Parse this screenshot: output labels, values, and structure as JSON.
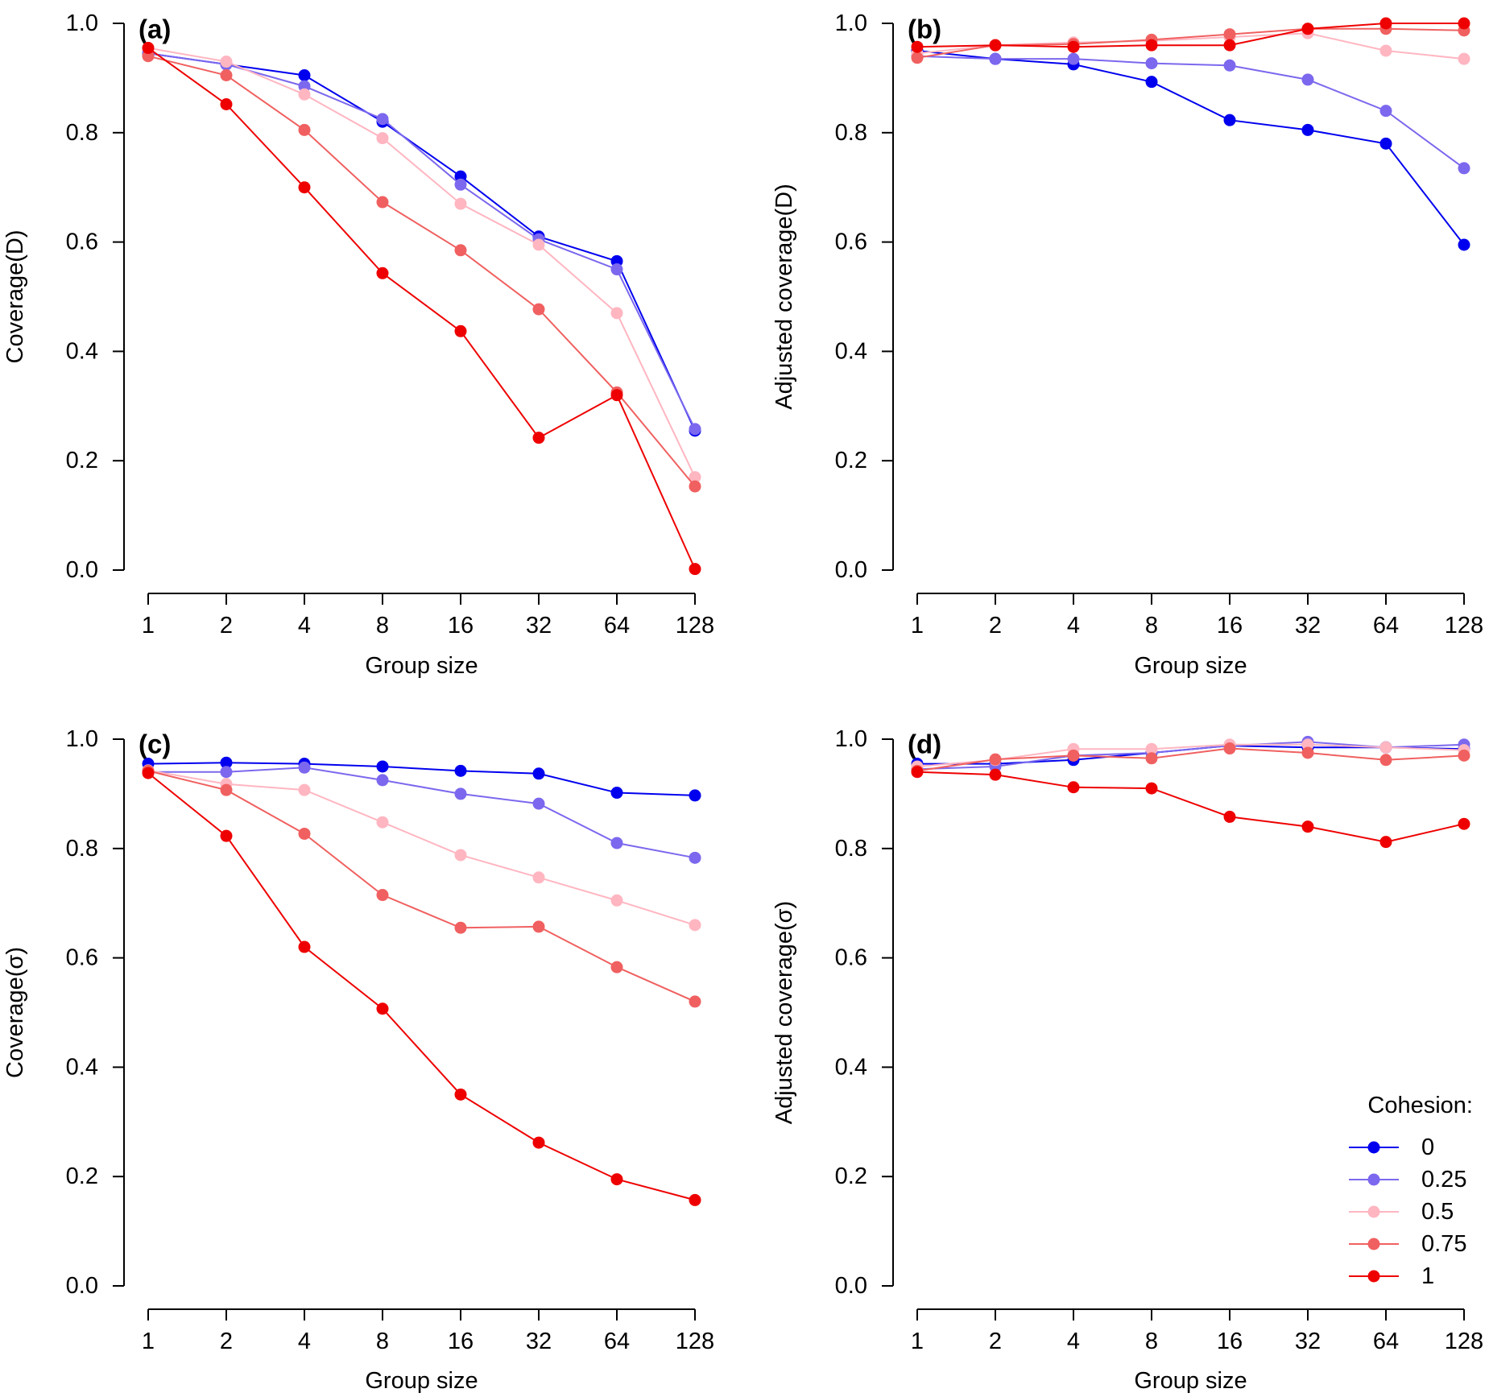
{
  "chart_data": [
    {
      "type": "line",
      "panel_label": "(a)",
      "x": [
        1,
        2,
        4,
        8,
        16,
        32,
        64,
        128
      ],
      "x_tick_labels": [
        "1",
        "2",
        "4",
        "8",
        "16",
        "32",
        "64",
        "128"
      ],
      "x_scale": "log2",
      "xlabel": "Group size",
      "ylabel": "Coverage(D)",
      "ylim": [
        0,
        1
      ],
      "y_ticks": [
        0,
        0.2,
        0.4,
        0.6,
        0.8,
        1.0
      ],
      "y_tick_labels": [
        "0.0",
        "0.2",
        "0.4",
        "0.6",
        "0.8",
        "1.0"
      ],
      "series": [
        {
          "name": "0",
          "color": "#0000ee",
          "values": [
            0.945,
            0.925,
            0.905,
            0.82,
            0.72,
            0.61,
            0.565,
            0.255
          ]
        },
        {
          "name": "0.25",
          "color": "#7b68ee",
          "values": [
            0.945,
            0.925,
            0.885,
            0.825,
            0.705,
            0.605,
            0.55,
            0.258
          ]
        },
        {
          "name": "0.5",
          "color": "#ffb6c1",
          "values": [
            0.955,
            0.93,
            0.87,
            0.79,
            0.67,
            0.595,
            0.47,
            0.17
          ]
        },
        {
          "name": "0.75",
          "color": "#f06060",
          "values": [
            0.94,
            0.905,
            0.805,
            0.673,
            0.585,
            0.477,
            0.325,
            0.153
          ]
        },
        {
          "name": "1",
          "color": "#ee0000",
          "values": [
            0.955,
            0.852,
            0.7,
            0.543,
            0.437,
            0.242,
            0.32,
            0.002
          ]
        }
      ]
    },
    {
      "type": "line",
      "panel_label": "(b)",
      "x": [
        1,
        2,
        4,
        8,
        16,
        32,
        64,
        128
      ],
      "x_tick_labels": [
        "1",
        "2",
        "4",
        "8",
        "16",
        "32",
        "64",
        "128"
      ],
      "x_scale": "log2",
      "xlabel": "Group size",
      "ylabel": "Adjusted coverage(D)",
      "ylim": [
        0,
        1
      ],
      "y_ticks": [
        0,
        0.2,
        0.4,
        0.6,
        0.8,
        1.0
      ],
      "y_tick_labels": [
        "0.0",
        "0.2",
        "0.4",
        "0.6",
        "0.8",
        "1.0"
      ],
      "series": [
        {
          "name": "0",
          "color": "#0000ee",
          "values": [
            0.95,
            0.935,
            0.925,
            0.893,
            0.823,
            0.805,
            0.78,
            0.595
          ]
        },
        {
          "name": "0.25",
          "color": "#7b68ee",
          "values": [
            0.94,
            0.935,
            0.935,
            0.927,
            0.923,
            0.897,
            0.84,
            0.735
          ]
        },
        {
          "name": "0.5",
          "color": "#ffb6c1",
          "values": [
            0.945,
            0.96,
            0.965,
            0.968,
            0.975,
            0.982,
            0.95,
            0.935
          ]
        },
        {
          "name": "0.75",
          "color": "#f06060",
          "values": [
            0.937,
            0.96,
            0.962,
            0.97,
            0.98,
            0.99,
            0.99,
            0.987
          ]
        },
        {
          "name": "1",
          "color": "#ee0000",
          "values": [
            0.957,
            0.96,
            0.957,
            0.96,
            0.96,
            0.99,
            1.0,
            1.0
          ]
        }
      ]
    },
    {
      "type": "line",
      "panel_label": "(c)",
      "x": [
        1,
        2,
        4,
        8,
        16,
        32,
        64,
        128
      ],
      "x_tick_labels": [
        "1",
        "2",
        "4",
        "8",
        "16",
        "32",
        "64",
        "128"
      ],
      "x_scale": "log2",
      "xlabel": "Group size",
      "ylabel": "Coverage(σ)",
      "ylim": [
        0,
        1
      ],
      "y_ticks": [
        0,
        0.2,
        0.4,
        0.6,
        0.8,
        1.0
      ],
      "y_tick_labels": [
        "0.0",
        "0.2",
        "0.4",
        "0.6",
        "0.8",
        "1.0"
      ],
      "series": [
        {
          "name": "0",
          "color": "#0000ee",
          "values": [
            0.955,
            0.957,
            0.955,
            0.95,
            0.942,
            0.937,
            0.902,
            0.897
          ]
        },
        {
          "name": "0.25",
          "color": "#7b68ee",
          "values": [
            0.94,
            0.94,
            0.948,
            0.925,
            0.9,
            0.882,
            0.81,
            0.783
          ]
        },
        {
          "name": "0.5",
          "color": "#ffb6c1",
          "values": [
            0.943,
            0.918,
            0.907,
            0.848,
            0.788,
            0.747,
            0.705,
            0.66
          ]
        },
        {
          "name": "0.75",
          "color": "#f06060",
          "values": [
            0.942,
            0.907,
            0.827,
            0.715,
            0.655,
            0.657,
            0.583,
            0.52
          ]
        },
        {
          "name": "1",
          "color": "#ee0000",
          "values": [
            0.938,
            0.823,
            0.62,
            0.507,
            0.35,
            0.262,
            0.195,
            0.157
          ]
        }
      ]
    },
    {
      "type": "line",
      "panel_label": "(d)",
      "x": [
        1,
        2,
        4,
        8,
        16,
        32,
        64,
        128
      ],
      "x_tick_labels": [
        "1",
        "2",
        "4",
        "8",
        "16",
        "32",
        "64",
        "128"
      ],
      "x_scale": "log2",
      "xlabel": "Group size",
      "ylabel": "Adjusted coverage(σ)",
      "ylim": [
        0,
        1
      ],
      "y_ticks": [
        0,
        0.2,
        0.4,
        0.6,
        0.8,
        1.0
      ],
      "y_tick_labels": [
        "0.0",
        "0.2",
        "0.4",
        "0.6",
        "0.8",
        "1.0"
      ],
      "legend": {
        "title": "Cohesion:",
        "placement": "bottom-right",
        "entries": [
          "0",
          "0.25",
          "0.5",
          "0.75",
          "1"
        ]
      },
      "series": [
        {
          "name": "0",
          "color": "#0000ee",
          "values": [
            0.955,
            0.955,
            0.962,
            0.975,
            0.988,
            0.985,
            0.985,
            0.982
          ]
        },
        {
          "name": "0.25",
          "color": "#7b68ee",
          "values": [
            0.945,
            0.95,
            0.97,
            0.975,
            0.988,
            0.995,
            0.985,
            0.99
          ]
        },
        {
          "name": "0.5",
          "color": "#ffb6c1",
          "values": [
            0.95,
            0.962,
            0.982,
            0.982,
            0.99,
            0.99,
            0.985,
            0.98
          ]
        },
        {
          "name": "0.75",
          "color": "#f06060",
          "values": [
            0.942,
            0.963,
            0.97,
            0.965,
            0.983,
            0.975,
            0.962,
            0.97
          ]
        },
        {
          "name": "1",
          "color": "#ee0000",
          "values": [
            0.94,
            0.935,
            0.912,
            0.91,
            0.858,
            0.84,
            0.812,
            0.845
          ]
        }
      ]
    }
  ]
}
